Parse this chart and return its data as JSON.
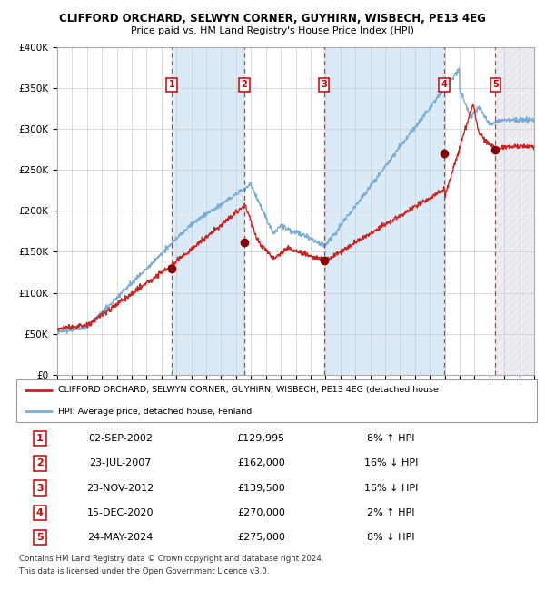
{
  "title": "CLIFFORD ORCHARD, SELWYN CORNER, GUYHIRN, WISBECH, PE13 4EG",
  "subtitle": "Price paid vs. HM Land Registry's House Price Index (HPI)",
  "legend_line1": "CLIFFORD ORCHARD, SELWYN CORNER, GUYHIRN, WISBECH, PE13 4EG (detached house",
  "legend_line2": "HPI: Average price, detached house, Fenland",
  "footer1": "Contains HM Land Registry data © Crown copyright and database right 2024.",
  "footer2": "This data is licensed under the Open Government Licence v3.0.",
  "sales": [
    {
      "num": 1,
      "date": "02-SEP-2002",
      "year": 2002.67,
      "price": 129995,
      "pct": "8%",
      "dir": "↑"
    },
    {
      "num": 2,
      "date": "23-JUL-2007",
      "year": 2007.56,
      "price": 162000,
      "pct": "16%",
      "dir": "↓"
    },
    {
      "num": 3,
      "date": "23-NOV-2012",
      "year": 2012.9,
      "price": 139500,
      "pct": "16%",
      "dir": "↓"
    },
    {
      "num": 4,
      "date": "15-DEC-2020",
      "year": 2020.96,
      "price": 270000,
      "pct": "2%",
      "dir": "↑"
    },
    {
      "num": 5,
      "date": "24-MAY-2024",
      "year": 2024.4,
      "price": 275000,
      "pct": "8%",
      "dir": "↓"
    }
  ],
  "hpi_color": "#7aaed6",
  "price_color": "#cc2222",
  "sale_dot_color": "#880000",
  "dashed_line_color": "#dd3333",
  "shaded_color": "#daeaf7",
  "ylim": [
    0,
    400000
  ],
  "xlim_start": 1995,
  "xlim_end": 2027,
  "yticks": [
    0,
    50000,
    100000,
    150000,
    200000,
    250000,
    300000,
    350000,
    400000
  ],
  "ytick_labels": [
    "£0",
    "£50K",
    "£100K",
    "£150K",
    "£200K",
    "£250K",
    "£300K",
    "£350K",
    "£400K"
  ]
}
